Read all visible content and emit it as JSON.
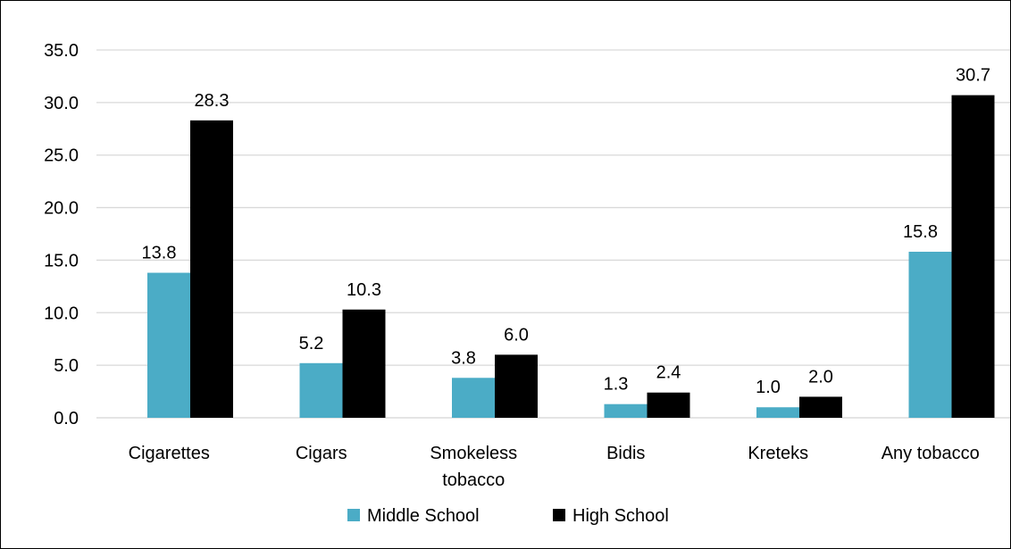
{
  "chart_data": {
    "type": "bar",
    "title": "",
    "xlabel": "",
    "ylabel": "",
    "categories": [
      [
        "Cigarettes"
      ],
      [
        "Cigars"
      ],
      [
        "Smokeless",
        "tobacco"
      ],
      [
        "Bidis"
      ],
      [
        "Kreteks"
      ],
      [
        "Any tobacco"
      ]
    ],
    "series": [
      {
        "name": "Middle School",
        "color": "#4BACC6",
        "values": [
          13.8,
          5.2,
          3.8,
          1.3,
          1.0,
          15.8
        ],
        "labels": [
          "13.8",
          "5.2",
          "3.8",
          "1.3",
          "1.0",
          "15.8"
        ]
      },
      {
        "name": "High School",
        "color": "#000000",
        "values": [
          28.3,
          10.3,
          6.0,
          2.4,
          2.0,
          30.7
        ],
        "labels": [
          "28.3",
          "10.3",
          "6.0",
          "2.4",
          "2.0",
          "30.7"
        ]
      }
    ],
    "ylim": [
      0,
      35
    ],
    "yticks": [
      0,
      5,
      10,
      15,
      20,
      25,
      30,
      35
    ],
    "ytick_labels": [
      "0.0",
      "5.0",
      "10.0",
      "15.0",
      "20.0",
      "25.0",
      "30.0",
      "35.0"
    ],
    "grid": true,
    "gridline_color": "#D9D9D9",
    "legend_position": "bottom"
  }
}
